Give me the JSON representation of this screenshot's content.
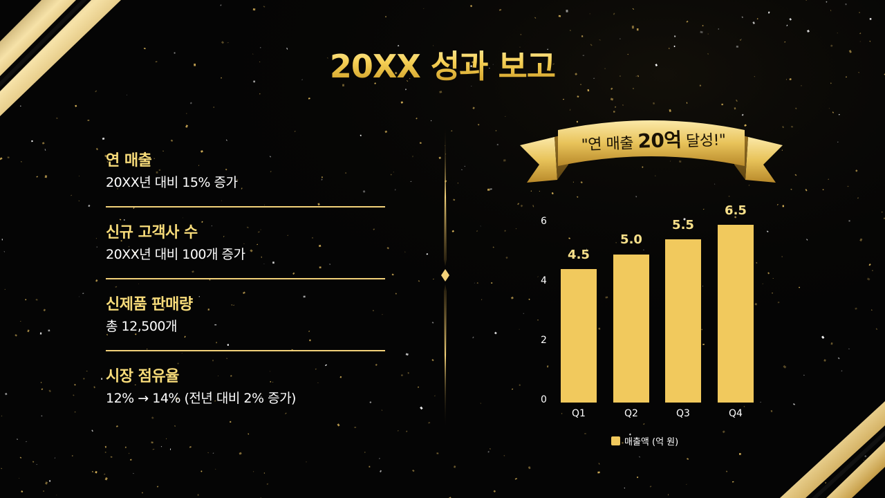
{
  "slide": {
    "title": "20XX 성과 보고",
    "colors": {
      "background": "#050505",
      "gold": "#f1c95d",
      "gold_text": "#f8dc7a",
      "divider": "#f3d27a"
    }
  },
  "metrics": [
    {
      "title": "연 매출",
      "desc": "20XX년 대비 15% 증가"
    },
    {
      "title": "신규 고객사 수",
      "desc": "20XX년 대비 100개 증가"
    },
    {
      "title": "신제품 판매량",
      "desc": "총 12,500개"
    },
    {
      "title": "시장 점유율",
      "desc": "12% → 14% (전년 대비 2% 증가)"
    }
  ],
  "banner": {
    "prefix": "\"연 매출 ",
    "highlight": "20억",
    "suffix": " 달성!\""
  },
  "chart_data": {
    "type": "bar",
    "title": "",
    "categories": [
      "Q1",
      "Q2",
      "Q3",
      "Q4"
    ],
    "series": [
      {
        "name": "매출액 (억 원)",
        "values": [
          4.5,
          5.0,
          5.5,
          6.5
        ]
      }
    ],
    "value_labels": [
      "4.5",
      "5.0",
      "5.5",
      "6.5"
    ],
    "y_ticks": [
      "0",
      "2",
      "4",
      "6"
    ],
    "ylim": [
      0,
      6.5
    ],
    "xlabel": "",
    "ylabel": "",
    "grid": false,
    "legend_position": "bottom",
    "legend": [
      "매출액 (억 원)"
    ],
    "color": "#f1c95d"
  }
}
